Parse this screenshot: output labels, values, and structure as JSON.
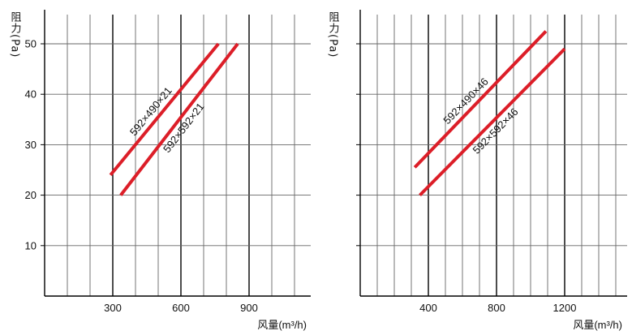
{
  "chart_data": [
    {
      "type": "line",
      "ylabel": "阻力(Pa)",
      "xlabel": "风量(m³/h)",
      "ylim": [
        0,
        55
      ],
      "xlim": [
        0,
        1150
      ],
      "yticks": [
        10,
        20,
        30,
        40,
        50
      ],
      "xticks": [
        300,
        600,
        900
      ],
      "grid": true,
      "series": [
        {
          "name": "592×490×21",
          "x": [
            290,
            765
          ],
          "y": [
            24,
            50
          ]
        },
        {
          "name": "592×592×21",
          "x": [
            335,
            850
          ],
          "y": [
            20,
            50
          ]
        }
      ]
    },
    {
      "type": "line",
      "ylabel": "阻力(Pa)",
      "xlabel": "风量(m³/h)",
      "ylim": [
        0,
        55
      ],
      "xlim": [
        0,
        1550
      ],
      "yticks": [],
      "xticks": [
        400,
        800,
        1200
      ],
      "grid": true,
      "series": [
        {
          "name": "592×490×46",
          "x": [
            320,
            1090
          ],
          "y": [
            25.5,
            52.5
          ]
        },
        {
          "name": "592×592×46",
          "x": [
            350,
            1200
          ],
          "y": [
            20,
            49
          ]
        }
      ]
    }
  ],
  "colors": {
    "line": "#dc1e28",
    "grid": "#666666",
    "major_grid": "#000000"
  }
}
